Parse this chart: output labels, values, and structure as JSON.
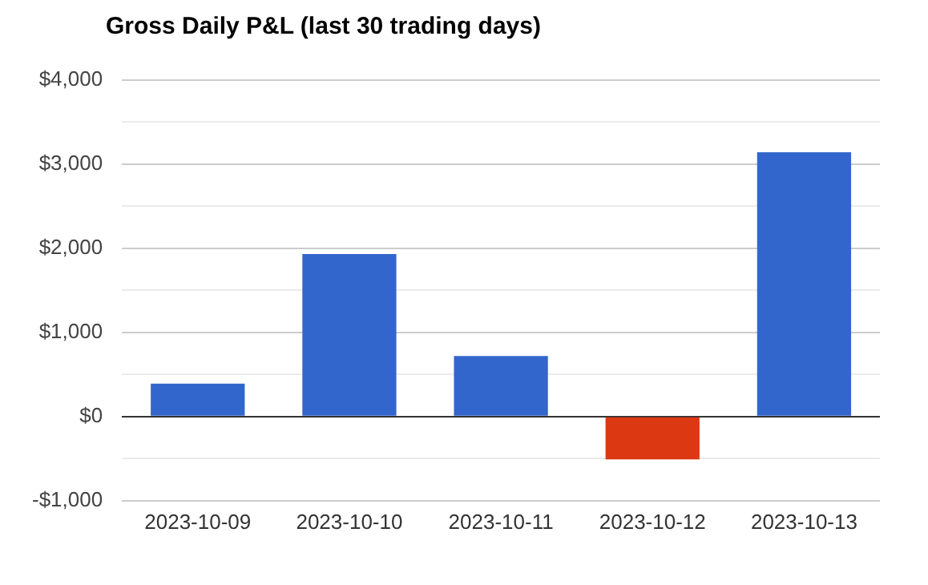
{
  "chart_data": {
    "type": "bar",
    "title": "Gross Daily P&L (last 30 trading days)",
    "categories": [
      "2023-10-09",
      "2023-10-10",
      "2023-10-11",
      "2023-10-12",
      "2023-10-13"
    ],
    "values": [
      390,
      1930,
      720,
      -510,
      3140
    ],
    "colors": [
      "#3366cc",
      "#3366cc",
      "#3366cc",
      "#dc3912",
      "#3366cc"
    ],
    "ylim": [
      -1000,
      4000
    ],
    "yticks": [
      {
        "value": -1000,
        "label": "-$1,000"
      },
      {
        "value": -500,
        "label": null
      },
      {
        "value": 0,
        "label": "$0"
      },
      {
        "value": 500,
        "label": null
      },
      {
        "value": 1000,
        "label": "$1,000"
      },
      {
        "value": 1500,
        "label": null
      },
      {
        "value": 2000,
        "label": "$2,000"
      },
      {
        "value": 2500,
        "label": null
      },
      {
        "value": 3000,
        "label": "$3,000"
      },
      {
        "value": 3500,
        "label": null
      },
      {
        "value": 4000,
        "label": "$4,000"
      }
    ],
    "grid": "y"
  }
}
